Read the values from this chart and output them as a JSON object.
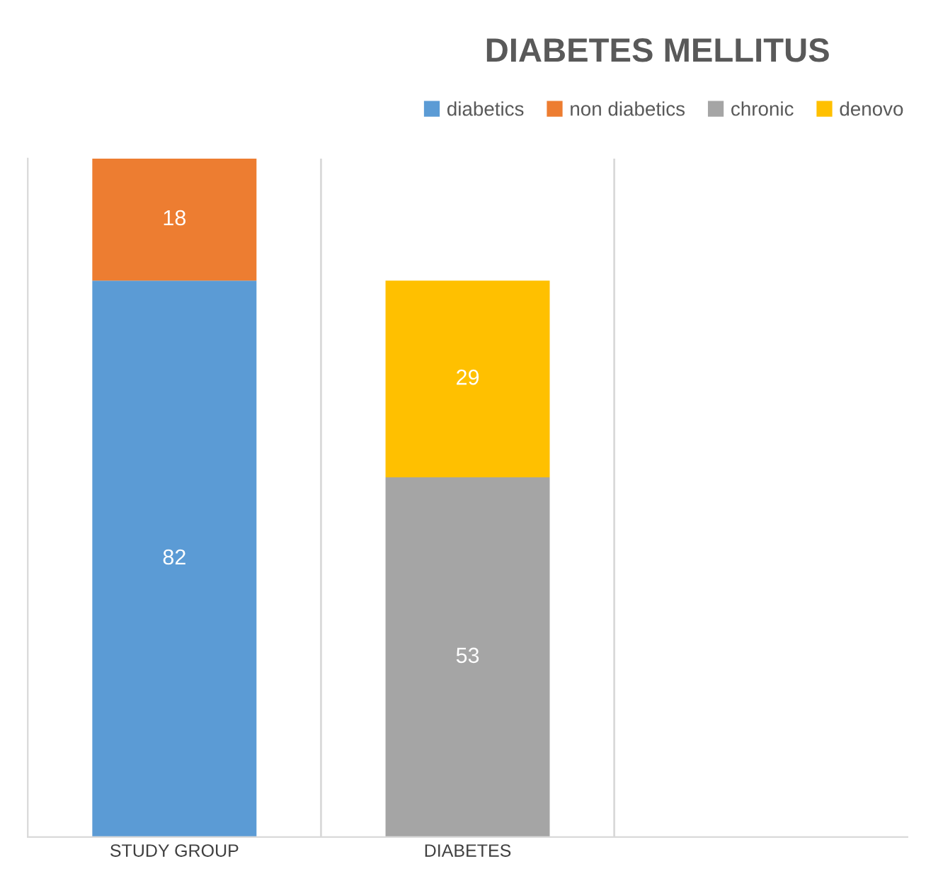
{
  "chart_data": {
    "type": "bar",
    "title": "DIABETES MELLITUS",
    "categories": [
      "STUDY GROUP",
      "DIABETES",
      null
    ],
    "stacked": true,
    "data_labels": true,
    "grid": "x",
    "legend": "top right",
    "ylim": [
      0,
      100
    ],
    "tick_labels": "x",
    "series": [
      {
        "name": "diabetics",
        "color": "#5b9bd5",
        "values": [
          82,
          null,
          null
        ]
      },
      {
        "name": "non diabetics",
        "color": "#ed7d31",
        "values": [
          18,
          null,
          null
        ]
      },
      {
        "name": "chronic",
        "color": "#a5a5a5",
        "values": [
          null,
          53,
          null
        ]
      },
      {
        "name": "denovo",
        "color": "#ffc000",
        "values": [
          null,
          29,
          null
        ]
      }
    ]
  }
}
